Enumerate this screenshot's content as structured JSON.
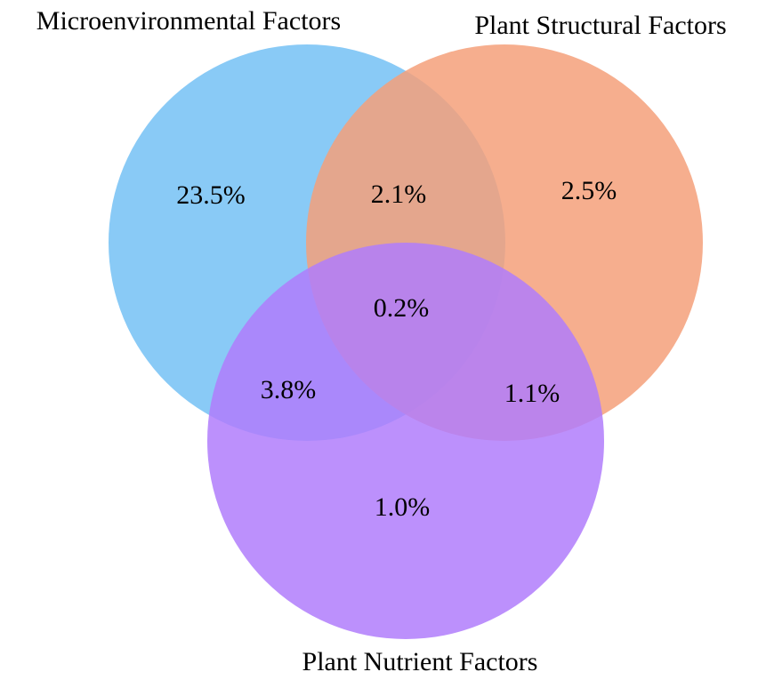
{
  "diagram": {
    "type": "venn",
    "sets": [
      {
        "id": "A",
        "label": "Microenvironmental Factors",
        "color": "#74c1f5"
      },
      {
        "id": "B",
        "label": "Plant Structural Factors",
        "color": "#f5a07a"
      },
      {
        "id": "C",
        "label": "Plant Nutrient Factors",
        "color": "#b07cfb"
      }
    ],
    "regions": [
      {
        "sets": [
          "A"
        ],
        "value": "23.5%"
      },
      {
        "sets": [
          "B"
        ],
        "value": "2.5%"
      },
      {
        "sets": [
          "C"
        ],
        "value": "1.0%"
      },
      {
        "sets": [
          "A",
          "B"
        ],
        "value": "2.1%"
      },
      {
        "sets": [
          "A",
          "C"
        ],
        "value": "3.8%"
      },
      {
        "sets": [
          "B",
          "C"
        ],
        "value": "1.1%"
      },
      {
        "sets": [
          "A",
          "B",
          "C"
        ],
        "value": "0.2%"
      }
    ]
  }
}
